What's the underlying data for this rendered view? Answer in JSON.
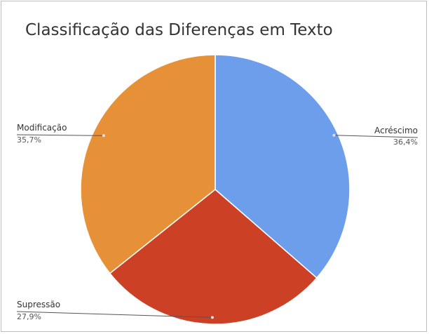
{
  "chart_data": {
    "type": "pie",
    "title": "Classificação das Diferenças em Texto",
    "slices": [
      {
        "label": "Acréscimo",
        "percent_label": "36,4%",
        "value": 36.4,
        "color": "#6d9eeb"
      },
      {
        "label": "Supressão",
        "percent_label": "27,9%",
        "value": 27.9,
        "color": "#cc4125"
      },
      {
        "label": "Modificação",
        "percent_label": "35,7%",
        "value": 35.7,
        "color": "#e69138"
      }
    ],
    "start_angle": "12 o'clock",
    "direction": "clockwise",
    "legend": "none"
  }
}
